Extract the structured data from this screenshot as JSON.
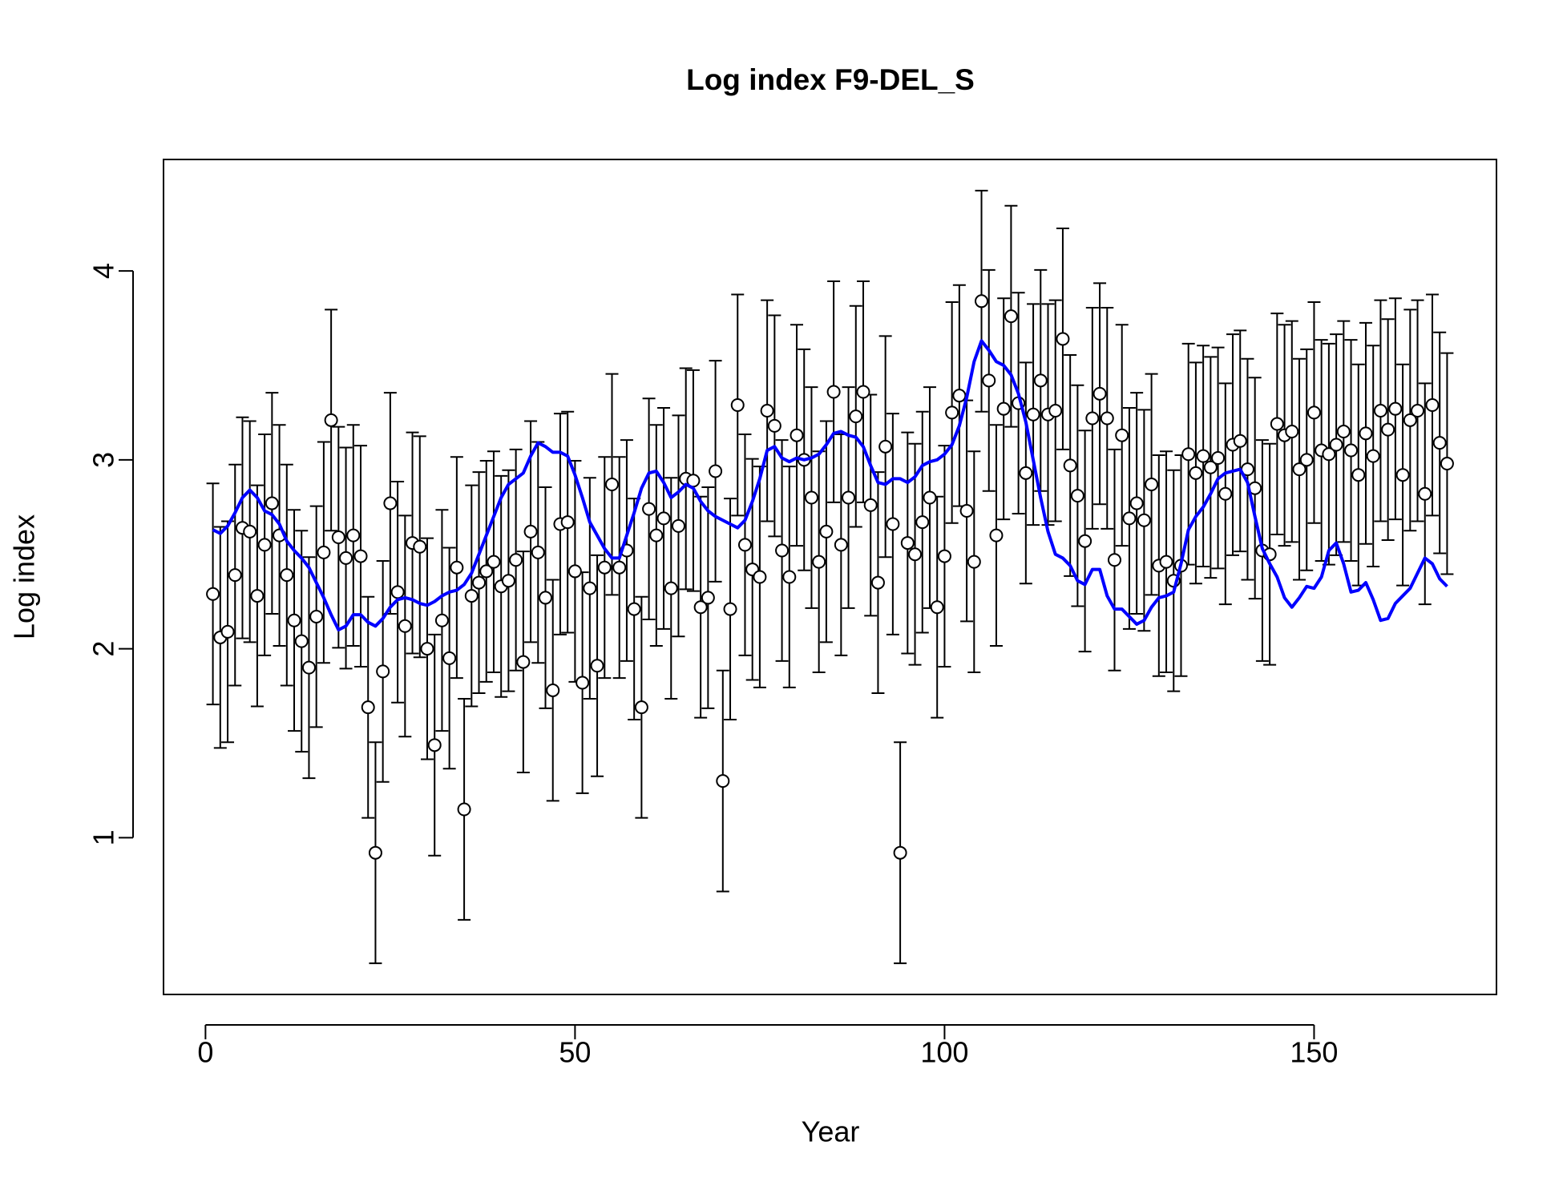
{
  "chart_data": {
    "type": "errorbar-line",
    "title": "Log index F9-DEL_S",
    "xlabel": "Year",
    "ylabel": "Log index",
    "xlim": [
      -5.68,
      174.68
    ],
    "ylim": [
      0.17,
      4.59
    ],
    "xticks": [
      0,
      50,
      100,
      150
    ],
    "yticks": [
      1,
      2,
      3,
      4
    ],
    "x": [
      1,
      2,
      3,
      4,
      5,
      6,
      7,
      8,
      9,
      10,
      11,
      12,
      13,
      14,
      15,
      16,
      17,
      18,
      19,
      20,
      21,
      22,
      23,
      24,
      25,
      26,
      27,
      28,
      29,
      30,
      31,
      32,
      33,
      34,
      35,
      36,
      37,
      38,
      39,
      40,
      41,
      42,
      43,
      44,
      45,
      46,
      47,
      48,
      49,
      50,
      51,
      52,
      53,
      54,
      55,
      56,
      57,
      58,
      59,
      60,
      61,
      62,
      63,
      64,
      65,
      66,
      67,
      68,
      69,
      70,
      71,
      72,
      73,
      74,
      75,
      76,
      77,
      78,
      79,
      80,
      81,
      82,
      83,
      84,
      85,
      86,
      87,
      88,
      89,
      90,
      91,
      92,
      93,
      94,
      95,
      96,
      97,
      98,
      99,
      100,
      101,
      102,
      103,
      104,
      105,
      106,
      107,
      108,
      109,
      110,
      111,
      112,
      113,
      114,
      115,
      116,
      117,
      118,
      119,
      120,
      121,
      122,
      123,
      124,
      125,
      126,
      127,
      128,
      129,
      130,
      131,
      132,
      133,
      134,
      135,
      136,
      137,
      138,
      139,
      140,
      141,
      142,
      143,
      144,
      145,
      146,
      147,
      148,
      149,
      150,
      151,
      152,
      153,
      154,
      155,
      156,
      157,
      158,
      159,
      160,
      161,
      162,
      163,
      164,
      165,
      166,
      167,
      168
    ],
    "series": [
      {
        "color": "#000000",
        "error": 0.585,
        "values": [
          2.29,
          2.06,
          2.09,
          2.39,
          2.64,
          2.62,
          2.28,
          2.55,
          2.77,
          2.6,
          2.39,
          2.15,
          2.04,
          1.9,
          2.17,
          2.51,
          3.21,
          2.59,
          2.48,
          2.6,
          2.49,
          1.69,
          0.92,
          1.88,
          2.77,
          2.3,
          2.12,
          2.56,
          2.54,
          2.0,
          1.49,
          2.15,
          1.95,
          2.43,
          1.15,
          2.28,
          2.35,
          2.41,
          2.46,
          2.33,
          2.36,
          2.47,
          1.93,
          2.62,
          2.51,
          2.27,
          1.78,
          2.66,
          2.67,
          2.41,
          1.82,
          2.32,
          1.91,
          2.43,
          2.87,
          2.43,
          2.52,
          2.21,
          1.69,
          2.74,
          2.6,
          2.69,
          2.32,
          2.65,
          2.9,
          2.89,
          2.22,
          2.27,
          2.94,
          1.3,
          2.21,
          3.29,
          2.55,
          2.42,
          2.38,
          3.26,
          3.18,
          2.52,
          2.38,
          3.13,
          3.0,
          2.8,
          2.46,
          2.62,
          3.36,
          2.55,
          2.8,
          3.23,
          3.36,
          2.76,
          2.35,
          3.07,
          2.66,
          0.92,
          2.56,
          2.5,
          2.67,
          2.8,
          2.22,
          2.49,
          3.25,
          3.34,
          2.73,
          2.46,
          3.84,
          3.42,
          2.6,
          3.27,
          3.76,
          3.3,
          2.93,
          3.24,
          3.42,
          3.24,
          3.26,
          3.64,
          2.97,
          2.81,
          2.57,
          3.22,
          3.35,
          3.22,
          2.47,
          3.13,
          2.69,
          2.77,
          2.68,
          2.87,
          2.44,
          2.46,
          2.36,
          2.44,
          3.03,
          2.93,
          3.02,
          2.96,
          3.01,
          2.82,
          3.08,
          3.1,
          2.95,
          2.85,
          2.52,
          2.5,
          3.19,
          3.13,
          3.15,
          2.95,
          3.0,
          3.25,
          3.05,
          3.03,
          3.08,
          3.15,
          3.05,
          2.92,
          3.14,
          3.02,
          3.26,
          3.16,
          3.27,
          2.92,
          3.21,
          3.26,
          2.82,
          3.29,
          3.09,
          2.98
        ]
      },
      {
        "color": "#0000ff",
        "values": [
          2.63,
          2.61,
          2.65,
          2.72,
          2.8,
          2.84,
          2.8,
          2.73,
          2.71,
          2.66,
          2.57,
          2.52,
          2.48,
          2.43,
          2.35,
          2.27,
          2.18,
          2.1,
          2.12,
          2.18,
          2.18,
          2.14,
          2.12,
          2.16,
          2.22,
          2.26,
          2.27,
          2.26,
          2.24,
          2.23,
          2.25,
          2.28,
          2.3,
          2.31,
          2.34,
          2.4,
          2.5,
          2.6,
          2.7,
          2.8,
          2.87,
          2.9,
          2.93,
          3.02,
          3.09,
          3.07,
          3.04,
          3.04,
          3.02,
          2.92,
          2.8,
          2.67,
          2.6,
          2.53,
          2.48,
          2.48,
          2.6,
          2.72,
          2.85,
          2.93,
          2.94,
          2.88,
          2.8,
          2.83,
          2.87,
          2.85,
          2.78,
          2.73,
          2.7,
          2.68,
          2.66,
          2.64,
          2.68,
          2.78,
          2.9,
          3.05,
          3.07,
          3.01,
          2.99,
          3.01,
          3.0,
          3.01,
          3.03,
          3.08,
          3.14,
          3.15,
          3.13,
          3.12,
          3.07,
          2.97,
          2.88,
          2.87,
          2.9,
          2.9,
          2.88,
          2.91,
          2.97,
          2.99,
          3.0,
          3.03,
          3.08,
          3.18,
          3.33,
          3.52,
          3.63,
          3.58,
          3.52,
          3.5,
          3.45,
          3.35,
          3.2,
          3.0,
          2.8,
          2.62,
          2.5,
          2.48,
          2.44,
          2.36,
          2.34,
          2.42,
          2.42,
          2.28,
          2.21,
          2.21,
          2.17,
          2.13,
          2.15,
          2.22,
          2.27,
          2.28,
          2.3,
          2.45,
          2.63,
          2.7,
          2.75,
          2.82,
          2.9,
          2.93,
          2.94,
          2.95,
          2.88,
          2.7,
          2.53,
          2.45,
          2.38,
          2.27,
          2.22,
          2.27,
          2.33,
          2.32,
          2.38,
          2.52,
          2.56,
          2.45,
          2.3,
          2.31,
          2.35,
          2.26,
          2.15,
          2.16,
          2.24,
          2.28,
          2.32,
          2.4,
          2.48,
          2.45,
          2.37,
          2.33
        ]
      }
    ]
  }
}
